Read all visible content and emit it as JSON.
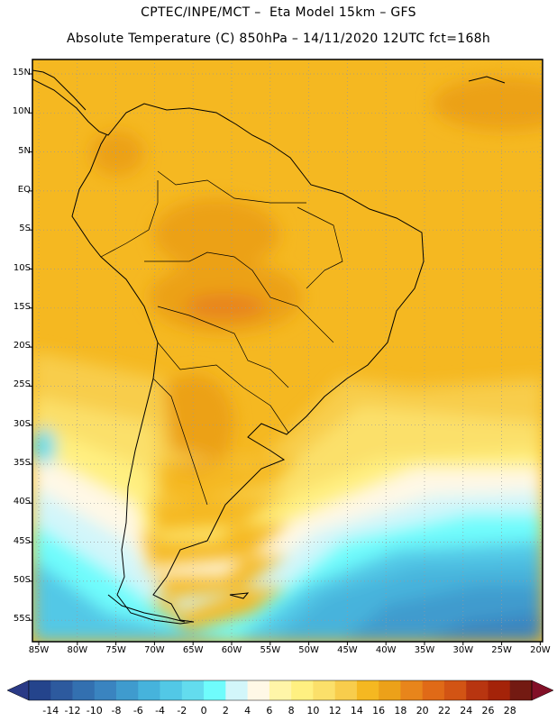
{
  "title_line1": "CPTEC/INPE/MCT –  Eta Model 15km – GFS",
  "title_line2": "Absolute Temperature (C) 850hPa – 14/11/2020 12UTC fct=168h",
  "lat_labels": [
    "15N",
    "10N",
    "5N",
    "EQ",
    "5S",
    "10S",
    "15S",
    "20S",
    "25S",
    "30S",
    "35S",
    "40S",
    "45S",
    "50S",
    "55S"
  ],
  "lon_labels": [
    "85W",
    "80W",
    "75W",
    "70W",
    "65W",
    "60W",
    "55W",
    "50W",
    "45W",
    "40W",
    "35W",
    "30W",
    "25W",
    "20W"
  ],
  "colorbar": {
    "labels": [
      "-14",
      "-12",
      "-10",
      "-8",
      "-6",
      "-4",
      "-2",
      "0",
      "2",
      "4",
      "6",
      "8",
      "10",
      "12",
      "14",
      "16",
      "18",
      "20",
      "22",
      "24",
      "26",
      "28"
    ],
    "colors": [
      "#24448c",
      "#2d5a9e",
      "#3370b0",
      "#3a84c0",
      "#3f9bce",
      "#46b3dc",
      "#52c8e6",
      "#63dcee",
      "#6ffcfc",
      "#d2f6fa",
      "#fff8e6",
      "#fff5a8",
      "#fff081",
      "#fbe06a",
      "#f8cd4c",
      "#f5b821",
      "#eca119",
      "#e8851b",
      "#e06a17",
      "#d25414",
      "#b83510",
      "#a42309",
      "#731a12"
    ],
    "under_color": "#2a3a86",
    "over_color": "#821027"
  }
}
